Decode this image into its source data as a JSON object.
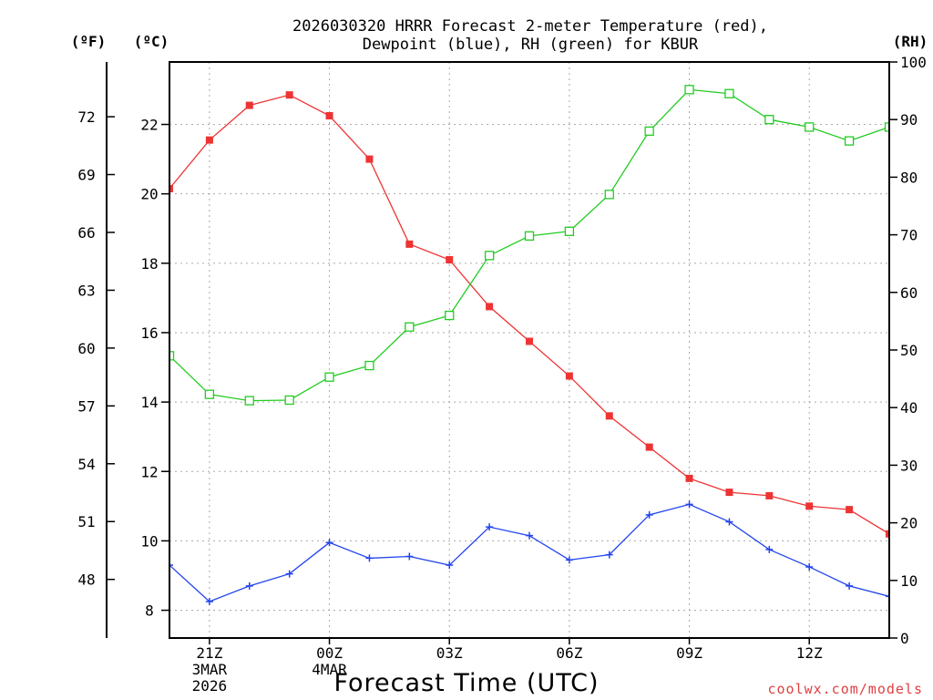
{
  "chart_data": {
    "type": "line",
    "title_line1": "2026030320 HRRR Forecast 2-meter Temperature (red),",
    "title_line2": "Dewpoint (blue), RH (green) for KBUR",
    "units": {
      "fahrenheit": "(ºF)",
      "celsius": "(ºC)",
      "rh": "(RH)"
    },
    "x_range": [
      -1,
      17
    ],
    "x_ticks": [
      {
        "x": 0,
        "lines": [
          "21Z",
          "3MAR",
          "2026"
        ]
      },
      {
        "x": 3,
        "lines": [
          "00Z",
          "4MAR"
        ]
      },
      {
        "x": 6,
        "lines": [
          "03Z"
        ]
      },
      {
        "x": 9,
        "lines": [
          "06Z"
        ]
      },
      {
        "x": 12,
        "lines": [
          "09Z"
        ]
      },
      {
        "x": 15,
        "lines": [
          "12Z"
        ]
      }
    ],
    "xlabel": "Forecast Time (UTC)",
    "credit": "coolwx.com/models",
    "ylim_celsius": [
      7.2,
      23.8
    ],
    "ylim_rh": [
      0,
      100
    ],
    "celsius_ticks": [
      8,
      10,
      12,
      14,
      16,
      18,
      20,
      22
    ],
    "fahrenheit_ticks": [
      48,
      51,
      54,
      57,
      60,
      63,
      66,
      69,
      72
    ],
    "rh_ticks": [
      0,
      10,
      20,
      30,
      40,
      50,
      60,
      70,
      80,
      90,
      100
    ],
    "grid": true,
    "x": [
      -1,
      0,
      1,
      2,
      3,
      4,
      5,
      6,
      7,
      8,
      9,
      10,
      11,
      12,
      13,
      14,
      15,
      16,
      17
    ],
    "series": [
      {
        "name": "Temperature",
        "axis": "celsius",
        "color": "#ee3333",
        "marker": "filled-square",
        "values": [
          20.15,
          21.55,
          22.55,
          22.85,
          22.25,
          21.0,
          18.55,
          18.1,
          16.75,
          15.75,
          14.75,
          13.6,
          12.7,
          11.8,
          11.4,
          11.3,
          11.0,
          10.9,
          10.2
        ]
      },
      {
        "name": "Dewpoint",
        "axis": "celsius",
        "color": "#2244ee",
        "marker": "plus",
        "values": [
          9.3,
          8.25,
          8.7,
          9.05,
          9.95,
          9.5,
          9.55,
          9.3,
          10.4,
          10.15,
          9.45,
          9.6,
          10.75,
          11.05,
          10.55,
          9.75,
          9.25,
          8.7,
          8.4
        ]
      },
      {
        "name": "RH",
        "axis": "rh",
        "color": "#22cc22",
        "marker": "open-square",
        "values": [
          49,
          42.3,
          41.2,
          41.3,
          45.3,
          47.3,
          54,
          56,
          66.4,
          69.8,
          70.6,
          77,
          88,
          95.2,
          94.5,
          90,
          88.7,
          86.3,
          88.7
        ]
      }
    ]
  }
}
